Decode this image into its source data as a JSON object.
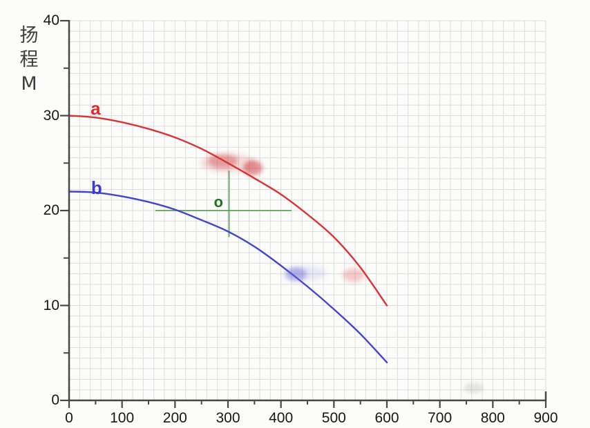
{
  "chart_data": {
    "type": "line",
    "title": "",
    "xlabel": "",
    "ylabel": "扬程 M",
    "ylabel_chars": [
      "扬",
      "程",
      "M"
    ],
    "xlim": [
      0,
      900
    ],
    "ylim": [
      0,
      40
    ],
    "x_ticks": [
      0,
      100,
      200,
      300,
      400,
      500,
      600,
      700,
      800,
      900
    ],
    "x_minor_ticks": [
      50,
      150,
      250,
      350,
      450,
      550,
      650,
      750,
      850
    ],
    "y_ticks": [
      0,
      10,
      20,
      30,
      40
    ],
    "y_minor_ticks": [
      5,
      15,
      25,
      35
    ],
    "grid": true,
    "legend_position": "inline-curve-labels",
    "series": [
      {
        "name": "a",
        "color": "#d93333",
        "label_color": "#e02a2a",
        "label_pos": {
          "x": 50,
          "y": 30.8
        },
        "x": [
          0,
          50,
          100,
          150,
          200,
          250,
          300,
          350,
          400,
          450,
          500,
          550,
          600
        ],
        "y": [
          30,
          29.8,
          29.3,
          28.6,
          27.7,
          26.5,
          25,
          23.4,
          21.7,
          19.6,
          17.2,
          14,
          10
        ]
      },
      {
        "name": "b",
        "color": "#4343cb",
        "label_color": "#3c3cd0",
        "label_pos": {
          "x": 52,
          "y": 22.4
        },
        "x": [
          0,
          50,
          100,
          150,
          200,
          250,
          300,
          350,
          400,
          450,
          500,
          550,
          600
        ],
        "y": [
          22,
          21.9,
          21.5,
          20.9,
          20.1,
          19,
          17.8,
          16.2,
          14.2,
          12,
          9.6,
          7,
          4
        ]
      }
    ],
    "annotation_cross": {
      "label": "o",
      "label_color": "#237023",
      "line_color": "#5da05d",
      "x": 302,
      "y": 20,
      "h_span": [
        163,
        420
      ],
      "v_span": [
        17.2,
        24.2
      ],
      "label_pos": {
        "x": 282,
        "y": 20.9
      }
    },
    "smudges": [
      {
        "x": 300,
        "y": 25.0,
        "rx": 40,
        "ry": 14,
        "color": "rgba(205,60,60,0.16)"
      },
      {
        "x": 290,
        "y": 25.2,
        "rx": 22,
        "ry": 10,
        "color": "rgba(200,45,45,0.38)"
      },
      {
        "x": 347,
        "y": 24.5,
        "rx": 14,
        "ry": 11,
        "color": "rgba(205,40,40,0.50)"
      },
      {
        "x": 450,
        "y": 13.4,
        "rx": 28,
        "ry": 11,
        "color": "rgba(130,130,215,0.15)"
      },
      {
        "x": 428,
        "y": 13.3,
        "rx": 16,
        "ry": 10,
        "color": "rgba(95,95,205,0.42)"
      },
      {
        "x": 537,
        "y": 13.2,
        "rx": 16,
        "ry": 10,
        "color": "rgba(225,85,85,0.30)"
      },
      {
        "x": 764,
        "y": 1.3,
        "rx": 14,
        "ry": 8,
        "color": "rgba(155,155,155,0.25)"
      }
    ],
    "axis_color": "#474747",
    "grid_color": "#dcdcde"
  }
}
